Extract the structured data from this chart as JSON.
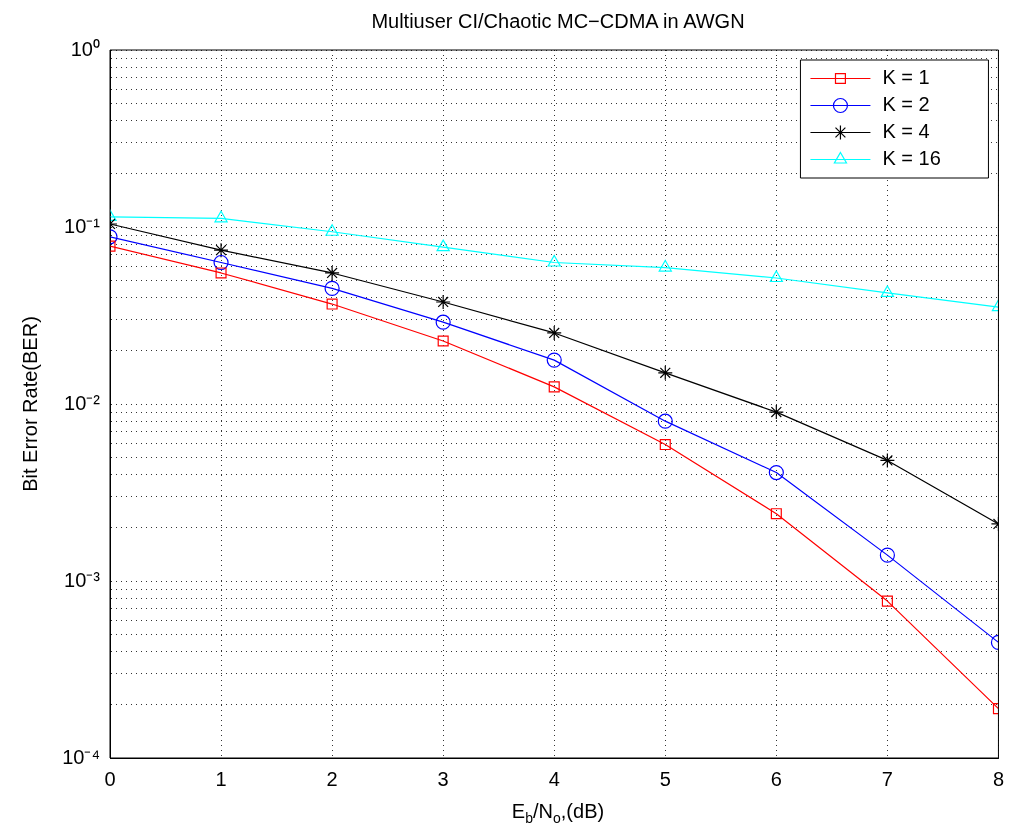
{
  "chart_data": {
    "type": "line",
    "title": "Multiuser CI/Chaotic MC−CDMA in AWGN",
    "xlabel": "E$_{b}$/N$_{o}$,(dB)",
    "ylabel": "Bit Error Rate(BER)",
    "x": [
      0,
      1,
      2,
      3,
      4,
      5,
      6,
      7,
      8
    ],
    "series": [
      {
        "name": "K = 1",
        "color": "#ff0000",
        "marker": "square",
        "values": [
          0.078,
          0.055,
          0.0367,
          0.0227,
          0.0125,
          0.0059,
          0.0024,
          0.00077,
          0.00019
        ]
      },
      {
        "name": "K = 2",
        "color": "#0000ff",
        "marker": "circle",
        "values": [
          0.088,
          0.063,
          0.045,
          0.029,
          0.0177,
          0.008,
          0.0041,
          0.0014,
          0.00045
        ]
      },
      {
        "name": "K = 4",
        "color": "#000000",
        "marker": "cross",
        "values": [
          0.104,
          0.074,
          0.055,
          0.0377,
          0.0252,
          0.015,
          0.009,
          0.0048,
          0.0021
        ]
      },
      {
        "name": "K = 16",
        "color": "#00ffff",
        "marker": "triangle",
        "values": [
          0.114,
          0.112,
          0.094,
          0.077,
          0.063,
          0.059,
          0.0515,
          0.0424,
          0.0353
        ]
      }
    ],
    "xlim": [
      0,
      8
    ],
    "xticks": [
      0,
      1,
      2,
      3,
      4,
      5,
      6,
      7,
      8
    ],
    "ylim": [
      0.0001,
      1
    ],
    "yticks": [
      {
        "value": 0.0001,
        "label": "10⁻⁴"
      },
      {
        "value": 0.0002,
        "label": null
      },
      {
        "value": 0.0003,
        "label": null
      },
      {
        "value": 0.0004,
        "label": null
      },
      {
        "value": 0.0005,
        "label": null
      },
      {
        "value": 0.0006,
        "label": null
      },
      {
        "value": 0.0007,
        "label": null
      },
      {
        "value": 0.0008,
        "label": null
      },
      {
        "value": 0.0009,
        "label": null
      },
      {
        "value": 0.001,
        "label": "10⁻³"
      },
      {
        "value": 0.002,
        "label": null
      },
      {
        "value": 0.003,
        "label": null
      },
      {
        "value": 0.004,
        "label": null
      },
      {
        "value": 0.005,
        "label": null
      },
      {
        "value": 0.006,
        "label": null
      },
      {
        "value": 0.007,
        "label": null
      },
      {
        "value": 0.008,
        "label": null
      },
      {
        "value": 0.009,
        "label": null
      },
      {
        "value": 0.01,
        "label": "10⁻²"
      },
      {
        "value": 0.02,
        "label": null
      },
      {
        "value": 0.03,
        "label": null
      },
      {
        "value": 0.04,
        "label": null
      },
      {
        "value": 0.05,
        "label": null
      },
      {
        "value": 0.06,
        "label": null
      },
      {
        "value": 0.07,
        "label": null
      },
      {
        "value": 0.08,
        "label": null
      },
      {
        "value": 0.09,
        "label": null
      },
      {
        "value": 0.1,
        "label": "10⁻¹"
      },
      {
        "value": 0.2,
        "label": null
      },
      {
        "value": 0.3,
        "label": null
      },
      {
        "value": 0.4,
        "label": null
      },
      {
        "value": 0.5,
        "label": null
      },
      {
        "value": 0.6,
        "label": null
      },
      {
        "value": 0.7,
        "label": null
      },
      {
        "value": 0.8,
        "label": null
      },
      {
        "value": 0.9,
        "label": null
      },
      {
        "value": 1,
        "label": "10⁰"
      }
    ],
    "log": "y",
    "grid": true,
    "legend": "top right",
    "line_style": "solid"
  }
}
